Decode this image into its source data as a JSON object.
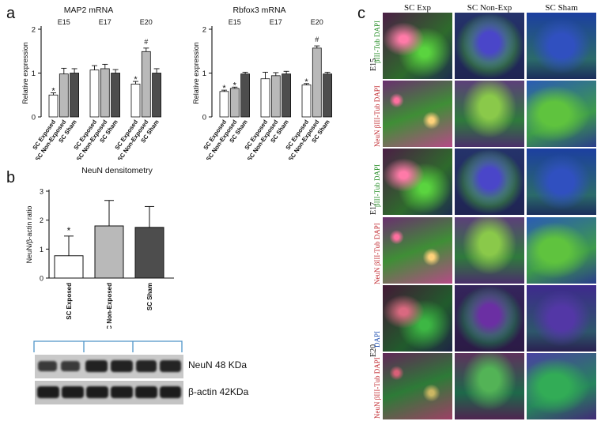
{
  "panel_labels": {
    "a": "a",
    "b": "b",
    "c": "c"
  },
  "colors": {
    "exposed": "#ffffff",
    "non_exposed": "#b9b9b9",
    "sham": "#4d4d4d",
    "bracket": "#4f94c8",
    "text": "#111111"
  },
  "panel_c": {
    "columns": [
      "SC Exp",
      "SC Non-Exp",
      "SC Sham"
    ],
    "stages": [
      {
        "label": "E15",
        "row1_label": "βIII-Tub DAPI",
        "row2_label": "NeuN βIII-Tub DAPI"
      },
      {
        "label": "E17",
        "row1_label": "βIII-Tub DAPI",
        "row2_label": "NeuN βIII-Tub DAPI"
      },
      {
        "label": "E20",
        "row1_label": "DAPI",
        "row2_label": "NeuN βIII-Tub DAPI"
      }
    ]
  },
  "western_blot": {
    "neun_label": "NeuN 48 KDa",
    "actin_label": "β-actin 42KDa"
  },
  "chart_data": [
    {
      "type": "bar",
      "title": "MAP2 mRNA",
      "ylabel": "Relative expression",
      "ylim": [
        0,
        2
      ],
      "yticks": [
        "0",
        "1",
        "2"
      ],
      "groups": [
        "E15",
        "E17",
        "E20"
      ],
      "categories": [
        "SC Exposed",
        "SC Non-Exposed",
        "SC Sham",
        "SC Exposed",
        "SC Non-Exposed",
        "SC Sham",
        "SC Exposed",
        "SC Non-Exposed",
        "SC Sham"
      ],
      "values": [
        0.5,
        0.98,
        1.0,
        1.07,
        1.1,
        1.0,
        0.75,
        1.49,
        1.0
      ],
      "errors": [
        0.05,
        0.13,
        0.1,
        0.1,
        0.1,
        0.08,
        0.06,
        0.08,
        0.1
      ],
      "annotations": [
        "*",
        "",
        "",
        "",
        "",
        "",
        "*",
        "#",
        ""
      ]
    },
    {
      "type": "bar",
      "title": "Rbfox3 mRNA",
      "ylabel": "Relative expression",
      "ylim": [
        0,
        2
      ],
      "yticks": [
        "0",
        "1",
        "2"
      ],
      "groups": [
        "E15",
        "E17",
        "E20"
      ],
      "categories": [
        "SC Exposed",
        "SC Non-Exposed",
        "SC Sham",
        "SC Exposed",
        "SC Non-Exposed",
        "SC Sham",
        "SC Exposed",
        "SC Non-Exposed",
        "SC Sham"
      ],
      "values": [
        0.58,
        0.65,
        0.98,
        0.87,
        0.94,
        0.98,
        0.73,
        1.57,
        0.98
      ],
      "errors": [
        0.03,
        0.03,
        0.04,
        0.15,
        0.07,
        0.06,
        0.03,
        0.05,
        0.04
      ],
      "annotations": [
        "*",
        "*",
        "",
        "",
        "",
        "",
        "*",
        "#",
        ""
      ]
    },
    {
      "type": "bar",
      "title": "NeuN densitometry",
      "ylabel": "NeuN/β-actin ratio",
      "ylim": [
        0,
        3
      ],
      "yticks": [
        "0",
        "1",
        "2",
        "3"
      ],
      "categories": [
        "SC Exposed",
        "SC Non-Exposed",
        "SC Sham"
      ],
      "values": [
        0.77,
        1.8,
        1.75
      ],
      "errors": [
        0.68,
        0.88,
        0.72
      ],
      "annotations": [
        "*",
        "",
        ""
      ]
    }
  ]
}
